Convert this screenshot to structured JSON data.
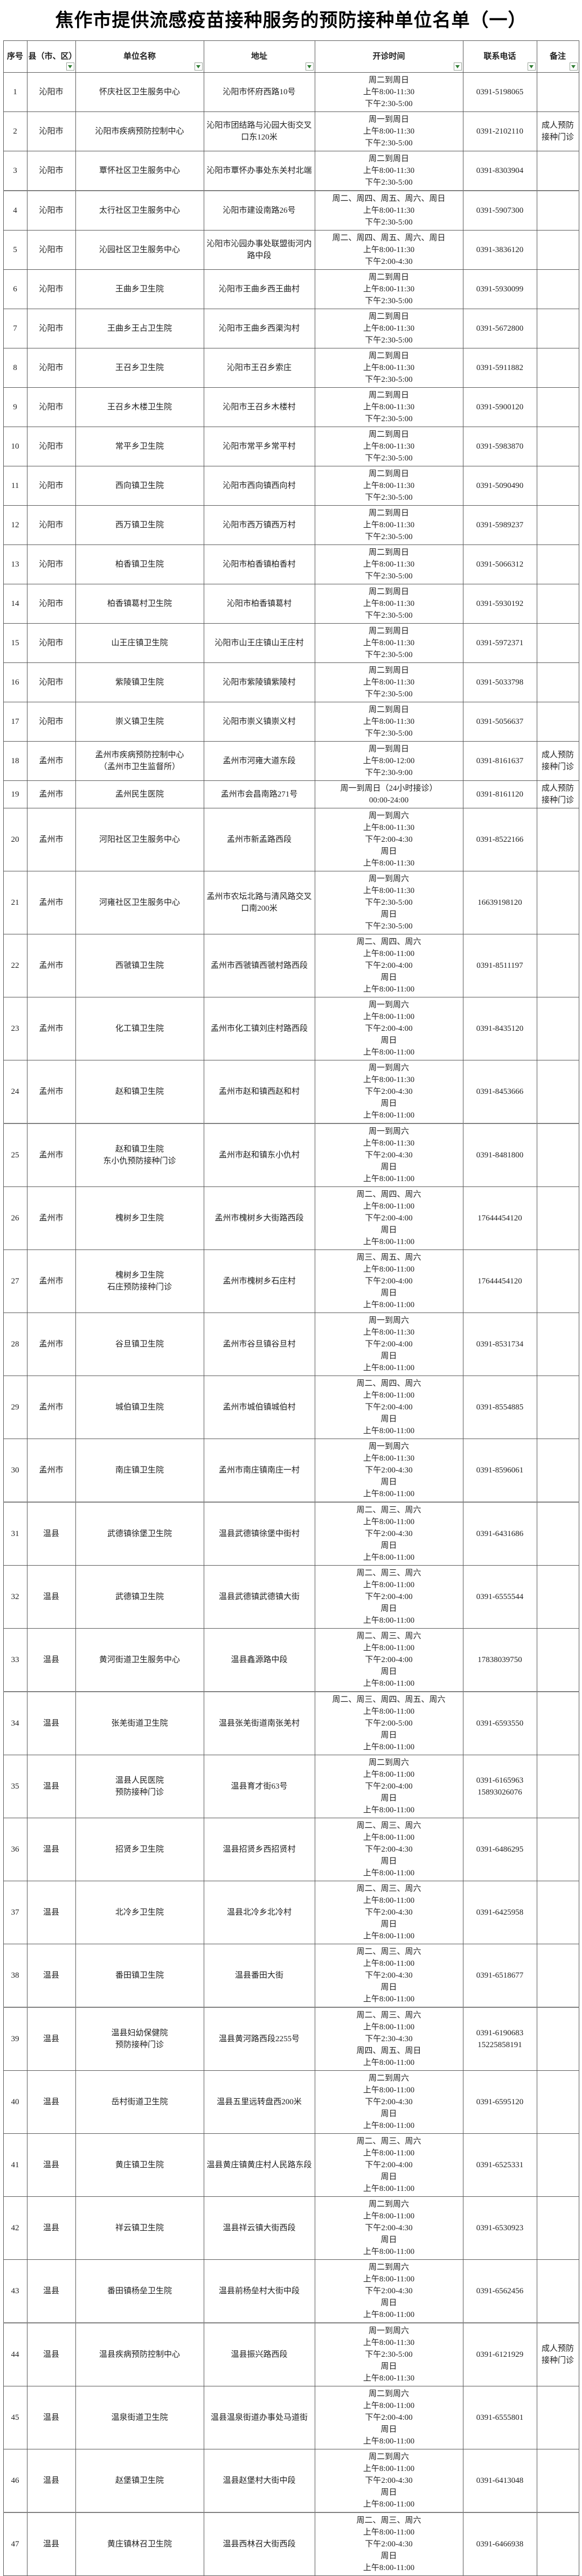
{
  "title": "焦作市提供流感疫苗接种服务的预防接种单位名单（一）",
  "colors": {
    "filter_arrow_green": "#2e7d32",
    "border": "#595959",
    "text": "#1a1a1a",
    "background": "#ffffff"
  },
  "table": {
    "headers": [
      "序号",
      "县（市、区）",
      "单位名称",
      "地址",
      "开诊时间",
      "联系电话",
      "备注"
    ],
    "filter_icon": "filter-dropdown-arrow"
  },
  "rows": [
    {
      "no": "1",
      "district": "沁阳市",
      "name": [
        "怀庆社区卫生服务中心"
      ],
      "address": "沁阳市怀府西路10号",
      "schedule": [
        "周二到周日",
        "上午8:00-11:30",
        "下午2:30-5:00"
      ],
      "phones": [
        "0391-5198065"
      ],
      "remark": ""
    },
    {
      "no": "2",
      "district": "沁阳市",
      "name": [
        "沁阳市疾病预防控制中心"
      ],
      "address": "沁阳市团结路与沁园大街交叉口东120米",
      "schedule": [
        "周一到周日",
        "上午8:00-11:30",
        "下午2:30-5:00"
      ],
      "phones": [
        "0391-2102110"
      ],
      "remark": "成人预防接种门诊"
    },
    {
      "no": "3",
      "district": "沁阳市",
      "name": [
        "覃怀社区卫生服务中心"
      ],
      "address": "沁阳市覃怀办事处东关村北端",
      "schedule": [
        "周二到周日",
        "上午8:00-11:30",
        "下午2:30-5:00"
      ],
      "phones": [
        "0391-8303904"
      ],
      "remark": ""
    },
    {
      "no": "4",
      "district": "沁阳市",
      "name": [
        "太行社区卫生服务中心"
      ],
      "address": "沁阳市建设南路26号",
      "schedule": [
        "周二、周四、周五、周六、周日",
        "上午8:00-11:30",
        "下午2:30-5:00"
      ],
      "phones": [
        "0391-5907300"
      ],
      "remark": ""
    },
    {
      "no": "5",
      "district": "沁阳市",
      "name": [
        "沁园社区卫生服务中心"
      ],
      "address": "沁阳市沁园办事处联盟街河内路中段",
      "schedule": [
        "周二、周四、周五、周六、周日",
        "上午8:00-11:30",
        "下午2:00-4:30"
      ],
      "phones": [
        "0391-3836120"
      ],
      "remark": ""
    },
    {
      "no": "6",
      "district": "沁阳市",
      "name": [
        "王曲乡卫生院"
      ],
      "address": "沁阳市王曲乡西王曲村",
      "schedule": [
        "周二到周日",
        "上午8:00-11:30",
        "下午2:30-5:00"
      ],
      "phones": [
        "0391-5930099"
      ],
      "remark": ""
    },
    {
      "no": "7",
      "district": "沁阳市",
      "name": [
        "王曲乡王占卫生院"
      ],
      "address": "沁阳市王曲乡西渠沟村",
      "schedule": [
        "周二到周日",
        "上午8:00-11:30",
        "下午2:30-5:00"
      ],
      "phones": [
        "0391-5672800"
      ],
      "remark": ""
    },
    {
      "no": "8",
      "district": "沁阳市",
      "name": [
        "王召乡卫生院"
      ],
      "address": "沁阳市王召乡索庄",
      "schedule": [
        "周二到周日",
        "上午8:00-11:30",
        "下午2:30-5:00"
      ],
      "phones": [
        "0391-5911882"
      ],
      "remark": ""
    },
    {
      "no": "9",
      "district": "沁阳市",
      "name": [
        "王召乡木楼卫生院"
      ],
      "address": "沁阳市王召乡木楼村",
      "schedule": [
        "周二到周日",
        "上午8:00-11:30",
        "下午2:30-5:00"
      ],
      "phones": [
        "0391-5900120"
      ],
      "remark": ""
    },
    {
      "no": "10",
      "district": "沁阳市",
      "name": [
        "常平乡卫生院"
      ],
      "address": "沁阳市常平乡常平村",
      "schedule": [
        "周二到周日",
        "上午8:00-11:30",
        "下午2:30-5:00"
      ],
      "phones": [
        "0391-5983870"
      ],
      "remark": ""
    },
    {
      "no": "11",
      "district": "沁阳市",
      "name": [
        "西向镇卫生院"
      ],
      "address": "沁阳市西向镇西向村",
      "schedule": [
        "周二到周日",
        "上午8:00-11:30",
        "下午2:30-5:00"
      ],
      "phones": [
        "0391-5090490"
      ],
      "remark": ""
    },
    {
      "no": "12",
      "district": "沁阳市",
      "name": [
        "西万镇卫生院"
      ],
      "address": "沁阳市西万镇西万村",
      "schedule": [
        "周二到周日",
        "上午8:00-11:30",
        "下午2:30-5:00"
      ],
      "phones": [
        "0391-5989237"
      ],
      "remark": ""
    },
    {
      "no": "13",
      "district": "沁阳市",
      "name": [
        "柏香镇卫生院"
      ],
      "address": "沁阳市柏香镇柏香村",
      "schedule": [
        "周二到周日",
        "上午8:00-11:30",
        "下午2:30-5:00"
      ],
      "phones": [
        "0391-5066312"
      ],
      "remark": ""
    },
    {
      "no": "14",
      "district": "沁阳市",
      "name": [
        "柏香镇葛村卫生院"
      ],
      "address": "沁阳市柏香镇葛村",
      "schedule": [
        "周二到周日",
        "上午8:00-11:30",
        "下午2:30-5:00"
      ],
      "phones": [
        "0391-5930192"
      ],
      "remark": ""
    },
    {
      "no": "15",
      "district": "沁阳市",
      "name": [
        "山王庄镇卫生院"
      ],
      "address": "沁阳市山王庄镇山王庄村",
      "schedule": [
        "周二到周日",
        "上午8:00-11:30",
        "下午2:30-5:00"
      ],
      "phones": [
        "0391-5972371"
      ],
      "remark": ""
    },
    {
      "no": "16",
      "district": "沁阳市",
      "name": [
        "紫陵镇卫生院"
      ],
      "address": "沁阳市紫陵镇紫陵村",
      "schedule": [
        "周二到周日",
        "上午8:00-11:30",
        "下午2:30-5:00"
      ],
      "phones": [
        "0391-5033798"
      ],
      "remark": ""
    },
    {
      "no": "17",
      "district": "沁阳市",
      "name": [
        "崇义镇卫生院"
      ],
      "address": "沁阳市崇义镇崇义村",
      "schedule": [
        "周二到周日",
        "上午8:00-11:30",
        "下午2:30-5:00"
      ],
      "phones": [
        "0391-5056637"
      ],
      "remark": ""
    },
    {
      "no": "18",
      "district": "孟州市",
      "name": [
        "孟州市疾病预防控制中心",
        "（孟州市卫生监督所）"
      ],
      "address": "孟州市河雍大道东段",
      "schedule": [
        "周一到周日",
        "上午8:00-12:00",
        "下午2:30-9:00"
      ],
      "phones": [
        "0391-8161637"
      ],
      "remark": "成人预防接种门诊"
    },
    {
      "no": "19",
      "district": "孟州市",
      "name": [
        "孟州民生医院"
      ],
      "address": "孟州市会昌南路271号",
      "schedule": [
        "周一到周日（24小时接诊）",
        "00:00-24:00"
      ],
      "phones": [
        "0391-8161120"
      ],
      "remark": "成人预防接种门诊"
    },
    {
      "no": "20",
      "district": "孟州市",
      "name": [
        "河阳社区卫生服务中心"
      ],
      "address": "孟州市新孟路西段",
      "schedule": [
        "周一到周六",
        "上午8:00-11:30",
        "下午2:00-4:30",
        "周日",
        "上午8:00-11:30"
      ],
      "phones": [
        "0391-8522166"
      ],
      "remark": ""
    },
    {
      "no": "21",
      "district": "孟州市",
      "name": [
        "河雍社区卫生服务中心"
      ],
      "address": "孟州市农坛北路与清风路交叉口南200米",
      "schedule": [
        "周一到周六",
        "上午8:00-11:30",
        "下午2:30-5:00",
        "周日",
        "下午2:30-5:00"
      ],
      "phones": [
        "16639198120"
      ],
      "remark": ""
    },
    {
      "no": "22",
      "district": "孟州市",
      "name": [
        "西虢镇卫生院"
      ],
      "address": "孟州市西虢镇西虢村路西段",
      "schedule": [
        "周二、周四、周六",
        "上午8:00-11:00",
        "下午2:00-4:00",
        "周日",
        "上午8:00-11:00"
      ],
      "phones": [
        "0391-8511197"
      ],
      "remark": ""
    },
    {
      "no": "23",
      "district": "孟州市",
      "name": [
        "化工镇卫生院"
      ],
      "address": "孟州市化工镇刘庄村路西段",
      "schedule": [
        "周一到周六",
        "上午8:00-11:00",
        "下午2:00-4:00",
        "周日",
        "上午8:00-11:00"
      ],
      "phones": [
        "0391-8435120"
      ],
      "remark": ""
    },
    {
      "no": "24",
      "district": "孟州市",
      "name": [
        "赵和镇卫生院"
      ],
      "address": "孟州市赵和镇西赵和村",
      "schedule": [
        "周一到周六",
        "上午8:00-11:30",
        "下午2:00-4:30",
        "周日",
        "上午8:00-11:00"
      ],
      "phones": [
        "0391-8453666"
      ],
      "remark": ""
    },
    {
      "no": "25",
      "district": "孟州市",
      "name": [
        "赵和镇卫生院",
        "东小仇预防接种门诊"
      ],
      "address": "孟州市赵和镇东小仇村",
      "schedule": [
        "周一到周六",
        "上午8:00-11:30",
        "下午2:00-4:30",
        "周日",
        "上午8:00-11:00"
      ],
      "phones": [
        "0391-8481800"
      ],
      "remark": ""
    },
    {
      "no": "26",
      "district": "孟州市",
      "name": [
        "槐树乡卫生院"
      ],
      "address": "孟州市槐树乡大街路西段",
      "schedule": [
        "周二、周四、周六",
        "上午8:00-11:00",
        "下午2:00-4:00",
        "周日",
        "上午8:00-11:00"
      ],
      "phones": [
        "17644454120"
      ],
      "remark": ""
    },
    {
      "no": "27",
      "district": "孟州市",
      "name": [
        "槐树乡卫生院",
        "石庄预防接种门诊"
      ],
      "address": "孟州市槐树乡石庄村",
      "schedule": [
        "周三、周五、周六",
        "上午8:00-11:00",
        "下午2:00-4:00",
        "周日",
        "上午8:00-11:00"
      ],
      "phones": [
        "17644454120"
      ],
      "remark": ""
    },
    {
      "no": "28",
      "district": "孟州市",
      "name": [
        "谷旦镇卫生院"
      ],
      "address": "孟州市谷旦镇谷旦村",
      "schedule": [
        "周一到周六",
        "上午8:00-11:30",
        "下午2:00-4:00",
        "周日",
        "上午8:00-11:00"
      ],
      "phones": [
        "0391-8531734"
      ],
      "remark": ""
    },
    {
      "no": "29",
      "district": "孟州市",
      "name": [
        "城伯镇卫生院"
      ],
      "address": "孟州市城伯镇城伯村",
      "schedule": [
        "周二、周四、周六",
        "上午8:00-11:00",
        "下午2:00-4:00",
        "周日",
        "上午8:00-11:00"
      ],
      "phones": [
        "0391-8554885"
      ],
      "remark": ""
    },
    {
      "no": "30",
      "district": "孟州市",
      "name": [
        "南庄镇卫生院"
      ],
      "address": "孟州市南庄镇南庄一村",
      "schedule": [
        "周一到周六",
        "上午8:00-11:30",
        "下午2:00-4:30",
        "周日",
        "上午8:00-11:00"
      ],
      "phones": [
        "0391-8596061"
      ],
      "remark": ""
    },
    {
      "no": "31",
      "district": "温县",
      "name": [
        "武德镇徐堡卫生院"
      ],
      "address": "温县武德镇徐堡中街村",
      "schedule": [
        "周二、周三、周六",
        "上午8:00-11:00",
        "下午2:00-4:30",
        "周日",
        "上午8:00-11:00"
      ],
      "phones": [
        "0391-6431686"
      ],
      "remark": ""
    },
    {
      "no": "32",
      "district": "温县",
      "name": [
        "武德镇卫生院"
      ],
      "address": "温县武德镇武德镇大街",
      "schedule": [
        "周二、周三、周六",
        "上午8:00-11:00",
        "下午2:00-4:00",
        "周日",
        "上午8:00-11:00"
      ],
      "phones": [
        "0391-6555544"
      ],
      "remark": ""
    },
    {
      "no": "33",
      "district": "温县",
      "name": [
        "黄河街道卫生服务中心"
      ],
      "address": "温县鑫源路中段",
      "schedule": [
        "周二、周三、周六",
        "上午8:00-11:00",
        "下午2:00-4:00",
        "周日",
        "上午8:00-11:00"
      ],
      "phones": [
        "17838039750"
      ],
      "remark": ""
    },
    {
      "no": "34",
      "district": "温县",
      "name": [
        "张羌街道卫生院"
      ],
      "address": "温县张羌街道南张羌村",
      "schedule": [
        "周二、周三、周四、周五、周六",
        "上午8:00-11:00",
        "下午2:00-5:00",
        "周日",
        "上午8:00-11:00"
      ],
      "phones": [
        "0391-6593550"
      ],
      "remark": ""
    },
    {
      "no": "35",
      "district": "温县",
      "name": [
        "温县人民医院",
        "预防接种门诊"
      ],
      "address": "温县育才街63号",
      "schedule": [
        "周二到周六",
        "上午8:00-11:00",
        "下午2:00-4:00",
        "周日",
        "上午8:00-11:00"
      ],
      "phones": [
        "0391-6165963",
        "15893026076"
      ],
      "remark": ""
    },
    {
      "no": "36",
      "district": "温县",
      "name": [
        "招贤乡卫生院"
      ],
      "address": "温县招贤乡西招贤村",
      "schedule": [
        "周二、周三、周六",
        "上午8:00-11:00",
        "下午2:00-4:30",
        "周日",
        "上午8:00-11:00"
      ],
      "phones": [
        "0391-6486295"
      ],
      "remark": ""
    },
    {
      "no": "37",
      "district": "温县",
      "name": [
        "北冷乡卫生院"
      ],
      "address": "温县北冷乡北冷村",
      "schedule": [
        "周二、周三、周六",
        "上午8:00-11:00",
        "下午2:00-4:30",
        "周日",
        "上午8:00-11:00"
      ],
      "phones": [
        "0391-6425958"
      ],
      "remark": ""
    },
    {
      "no": "38",
      "district": "温县",
      "name": [
        "番田镇卫生院"
      ],
      "address": "温县番田大街",
      "schedule": [
        "周二、周三、周六",
        "上午8:00-11:00",
        "下午2:00-4:30",
        "周日",
        "上午8:00-11:00"
      ],
      "phones": [
        "0391-6518677"
      ],
      "remark": ""
    },
    {
      "no": "39",
      "district": "温县",
      "name": [
        "温县妇幼保健院",
        "预防接种门诊"
      ],
      "address": "温县黄河路西段2255号",
      "schedule": [
        "周二、周三、周六",
        "上午8:00-11:00",
        "下午2:30-4:30",
        "周四、周五、周日",
        "上午8:00-11:00"
      ],
      "phones": [
        "0391-6190683",
        "15225858191"
      ],
      "remark": ""
    },
    {
      "no": "40",
      "district": "温县",
      "name": [
        "岳村街道卫生院"
      ],
      "address": "温县五里远转盘西200米",
      "schedule": [
        "周二到周六",
        "上午8:00-11:00",
        "下午2:00-4:30",
        "周日",
        "上午8:00-11:00"
      ],
      "phones": [
        "0391-6595120"
      ],
      "remark": ""
    },
    {
      "no": "41",
      "district": "温县",
      "name": [
        "黄庄镇卫生院"
      ],
      "address": "温县黄庄镇黄庄村人民路东段",
      "schedule": [
        "周二、周三、周六",
        "上午8:00-11:00",
        "下午2:00-4:00",
        "周日",
        "上午8:00-11:00"
      ],
      "phones": [
        "0391-6525331"
      ],
      "remark": ""
    },
    {
      "no": "42",
      "district": "温县",
      "name": [
        "祥云镇卫生院"
      ],
      "address": "温县祥云镇大街西段",
      "schedule": [
        "周二到周六",
        "上午8:00-11:00",
        "下午2:00-4:30",
        "周日",
        "上午8:00-11:00"
      ],
      "phones": [
        "0391-6530923"
      ],
      "remark": ""
    },
    {
      "no": "43",
      "district": "温县",
      "name": [
        "番田镇杨垒卫生院"
      ],
      "address": "温县前杨垒村大街中段",
      "schedule": [
        "周二到周六",
        "上午8:00-11:00",
        "下午2:00-4:30",
        "周日",
        "上午8:00-11:00"
      ],
      "phones": [
        "0391-6562456"
      ],
      "remark": ""
    },
    {
      "no": "44",
      "district": "温县",
      "name": [
        "温县疾病预防控制中心"
      ],
      "address": "温县振兴路西段",
      "schedule": [
        "周一到周六",
        "上午8:00-11:30",
        "下午2:30-5:00",
        "周日",
        "上午8:00-11:30"
      ],
      "phones": [
        "0391-6121929"
      ],
      "remark": "成人预防接种门诊"
    },
    {
      "no": "45",
      "district": "温县",
      "name": [
        "温泉街道卫生院"
      ],
      "address": "温县温泉街道办事处马道街",
      "schedule": [
        "周二到周六",
        "上午8:00-11:00",
        "下午2:00-4:00",
        "周日",
        "上午8:00-11:00"
      ],
      "phones": [
        "0391-6555801"
      ],
      "remark": ""
    },
    {
      "no": "46",
      "district": "温县",
      "name": [
        "赵堡镇卫生院"
      ],
      "address": "温县赵堡村大街中段",
      "schedule": [
        "周二到周六",
        "上午8:00-11:00",
        "下午2:00-4:30",
        "周日",
        "上午8:00-11:00"
      ],
      "phones": [
        "0391-6413048"
      ],
      "remark": ""
    },
    {
      "no": "47",
      "district": "温县",
      "name": [
        "黄庄镇林召卫生院"
      ],
      "address": "温县西林召大街西段",
      "schedule": [
        "周二、周三、周六",
        "上午8:00-11:00",
        "下午2:00-4:30",
        "周日",
        "上午8:00-11:00"
      ],
      "phones": [
        "0391-6466938"
      ],
      "remark": ""
    }
  ]
}
